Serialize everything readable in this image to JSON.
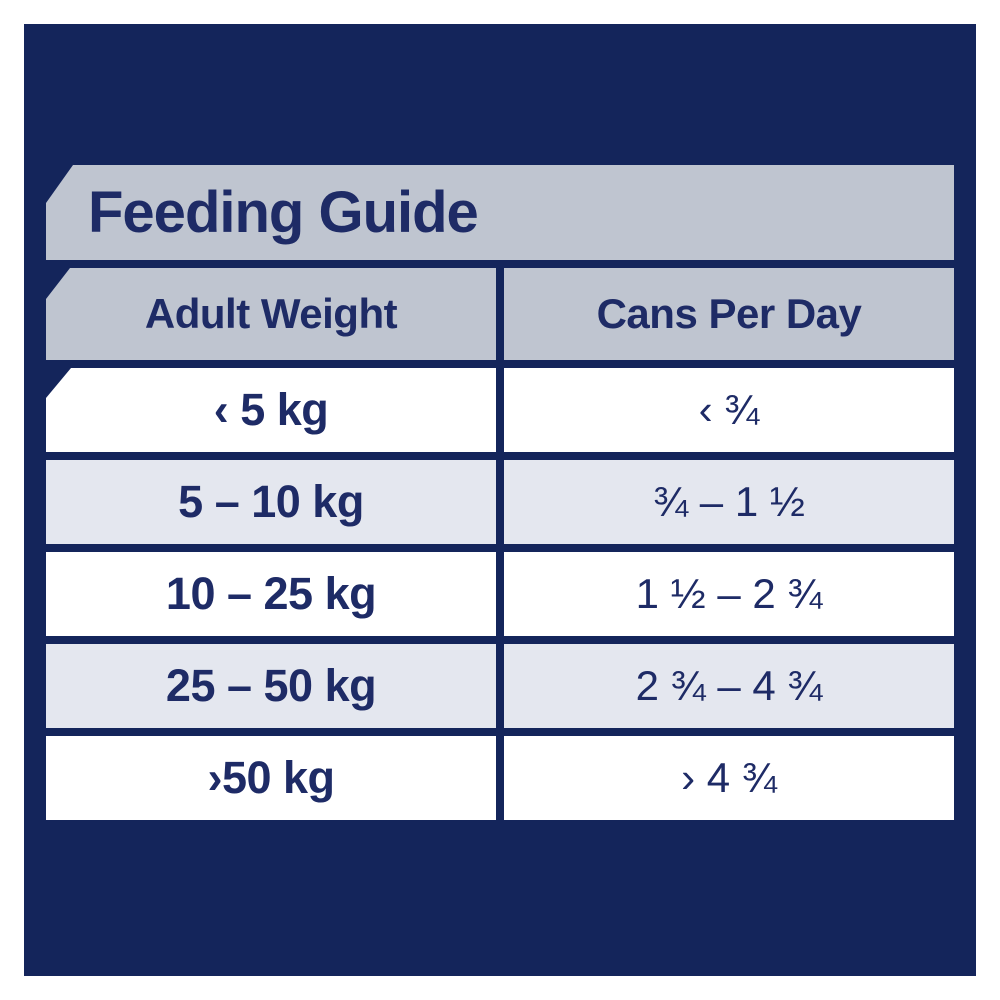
{
  "colors": {
    "panel_navy": "#14255b",
    "text_navy": "#1e2b66",
    "banner_gray": "#bfc5d0",
    "row_tint": "#e4e7ef",
    "row_white": "#ffffff"
  },
  "title": "Feeding Guide",
  "table": {
    "headers": {
      "weight": "Adult Weight",
      "cans": "Cans Per Day"
    },
    "rows": [
      {
        "weight": "‹ 5 kg",
        "cans": "‹ ¾"
      },
      {
        "weight": "5 – 10 kg",
        "cans": "¾ – 1 ½"
      },
      {
        "weight": "10 – 25 kg",
        "cans": "1 ½ – 2 ¾"
      },
      {
        "weight": "25 – 50 kg",
        "cans": "2 ¾ – 4 ¾"
      },
      {
        "weight": "›50 kg",
        "cans": "› 4 ¾"
      }
    ]
  },
  "chart_data": {
    "type": "table",
    "title": "Feeding Guide",
    "columns": [
      "Adult Weight",
      "Cans Per Day"
    ],
    "rows": [
      [
        "‹ 5 kg",
        "‹ ¾"
      ],
      [
        "5 – 10 kg",
        "¾ – 1 ½"
      ],
      [
        "10 – 25 kg",
        "1 ½ – 2 ¾"
      ],
      [
        "25 – 50 kg",
        "2 ¾ – 4 ¾"
      ],
      [
        "›50 kg",
        "› 4 ¾"
      ]
    ],
    "notes_units": {
      "weight_unit": "kg",
      "serving_unit": "cans per day"
    },
    "numeric_ranges": [
      {
        "weight_min_kg": null,
        "weight_max_kg": 5,
        "cans_min": null,
        "cans_max": 0.75
      },
      {
        "weight_min_kg": 5,
        "weight_max_kg": 10,
        "cans_min": 0.75,
        "cans_max": 1.5
      },
      {
        "weight_min_kg": 10,
        "weight_max_kg": 25,
        "cans_min": 1.5,
        "cans_max": 2.75
      },
      {
        "weight_min_kg": 25,
        "weight_max_kg": 50,
        "cans_min": 2.75,
        "cans_max": 4.75
      },
      {
        "weight_min_kg": 50,
        "weight_max_kg": null,
        "cans_min": 4.75,
        "cans_max": null
      }
    ]
  }
}
